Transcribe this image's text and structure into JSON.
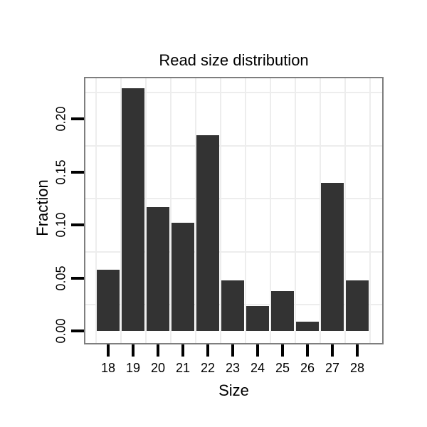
{
  "chart_data": {
    "type": "bar",
    "title": "Read size distribution",
    "xlabel": "Size",
    "ylabel": "Fraction",
    "categories": [
      "18",
      "19",
      "20",
      "21",
      "22",
      "23",
      "24",
      "25",
      "26",
      "27",
      "28"
    ],
    "values": [
      0.058,
      0.229,
      0.117,
      0.102,
      0.185,
      0.048,
      0.024,
      0.038,
      0.009,
      0.14,
      0.048
    ],
    "y_ticks": [
      {
        "label": "0.00",
        "value": 0.0
      },
      {
        "label": "0.05",
        "value": 0.05
      },
      {
        "label": "0.10",
        "value": 0.1
      },
      {
        "label": "0.15",
        "value": 0.15
      },
      {
        "label": "0.20",
        "value": 0.2
      }
    ],
    "minor_gridline_values": [
      0.025,
      0.075,
      0.125,
      0.175,
      0.225
    ],
    "ylim": [
      -0.0115,
      0.2405
    ],
    "grid": "minor gridlines only, light grey; vertical lines between categories",
    "legend": "none",
    "colors": {
      "bar_fill": "#333333",
      "panel_border": "#7e7e7e",
      "gridline": "#ededed",
      "tick": "#000000",
      "text": "#000000",
      "background": "#ffffff"
    }
  }
}
